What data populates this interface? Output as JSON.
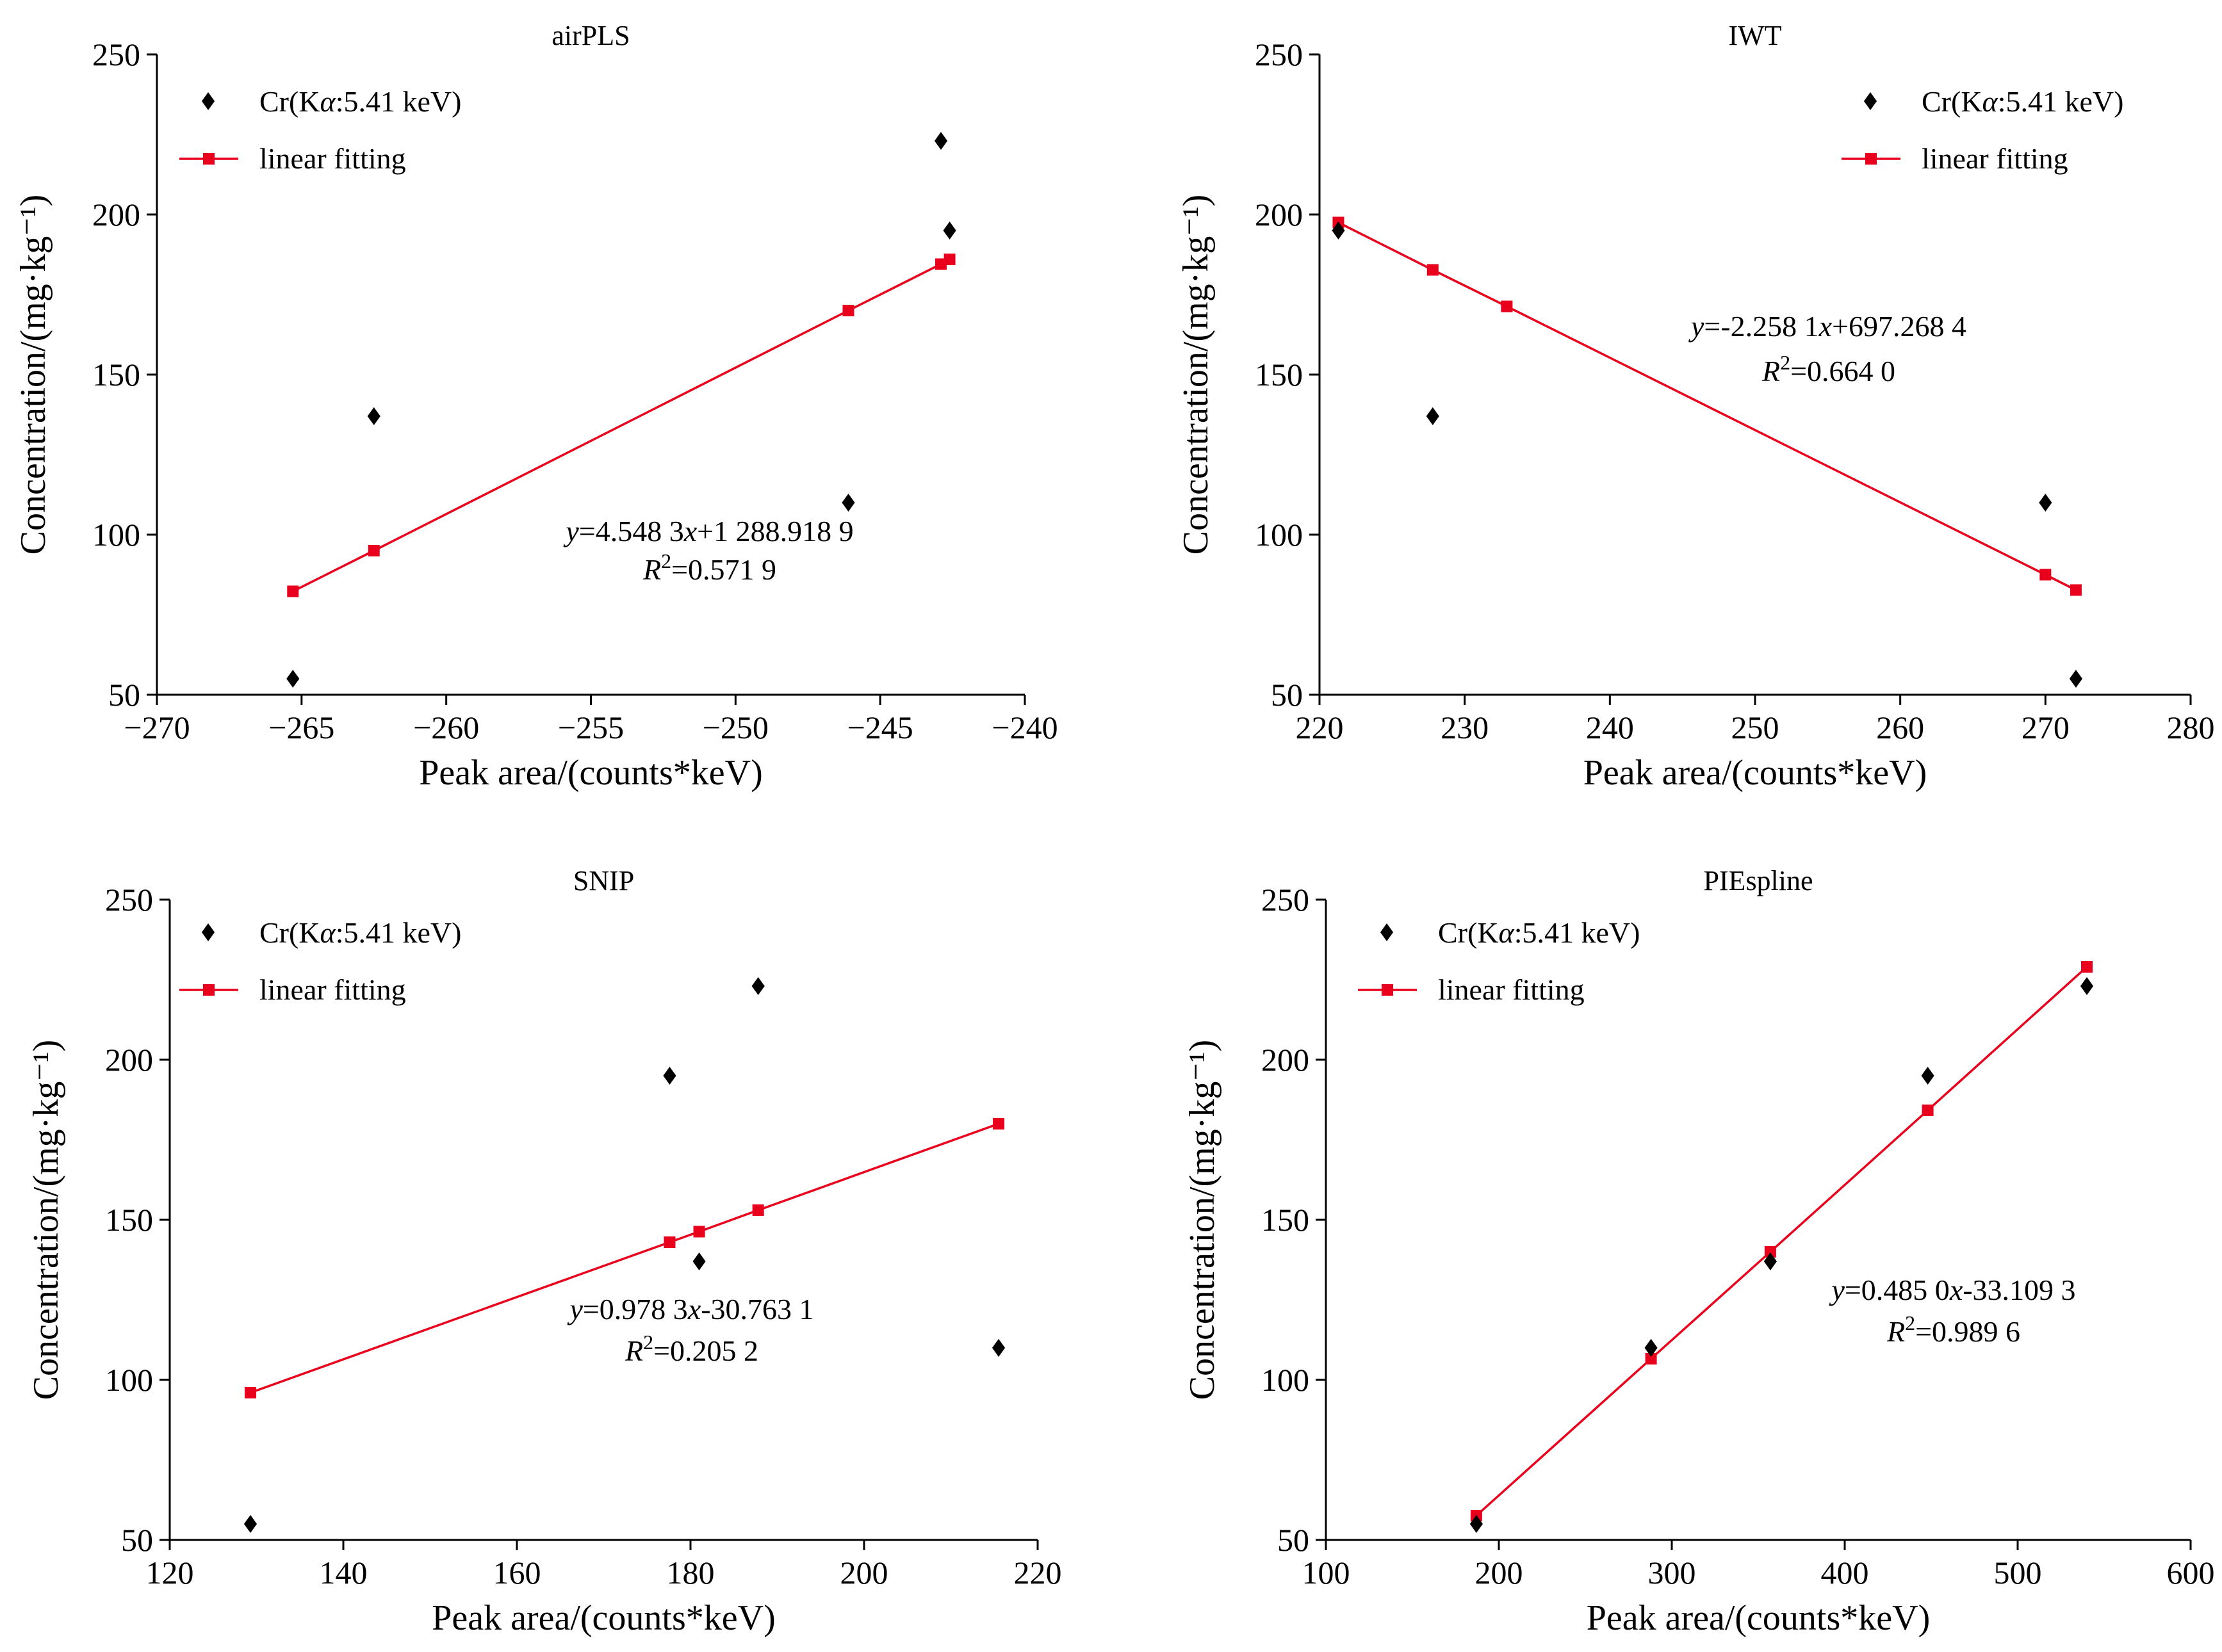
{
  "colors": {
    "scatter": "#000000",
    "fit": "#e8001c",
    "axis": "#000000"
  },
  "chart_data": [
    {
      "type": "scatter",
      "title": "airPLS",
      "xlabel": "Peak area/(counts*keV)",
      "ylabel": "Concentration/(mg·kg⁻¹)",
      "xlim": [
        -270,
        -240
      ],
      "ylim": [
        50,
        250
      ],
      "xticks": [
        -270,
        -265,
        -260,
        -255,
        -250,
        -245,
        -240
      ],
      "xtick_labels": [
        "−270",
        "−265",
        "−260",
        "−255",
        "−250",
        "−245",
        "−240"
      ],
      "yticks": [
        50,
        100,
        150,
        200,
        250
      ],
      "ytick_labels": [
        "50",
        "100",
        "150",
        "200",
        "250"
      ],
      "legend_position": "top-left",
      "series": [
        {
          "name": "Cr(Kα:5.41 keV)",
          "kind": "scatter",
          "marker": "diamond",
          "x": [
            -265.3,
            -262.5,
            -246.1,
            -242.9,
            -242.6
          ],
          "y": [
            55,
            137,
            110,
            223,
            195
          ]
        },
        {
          "name": "linear fitting",
          "kind": "line",
          "marker": "square",
          "x": [
            -265.3,
            -262.5,
            -246.1,
            -242.9,
            -242.6
          ],
          "y": [
            82.3,
            95.0,
            170.0,
            184.5,
            186.0
          ]
        }
      ],
      "annotations": {
        "equation": "y=4.548 3x+1 288.918 9",
        "r2": "R²=0.571 9"
      }
    },
    {
      "type": "scatter",
      "title": "IWT",
      "xlabel": "Peak area/(counts*keV)",
      "ylabel": "Concentration/(mg·kg⁻¹)",
      "xlim": [
        220,
        280
      ],
      "ylim": [
        50,
        250
      ],
      "xticks": [
        220,
        230,
        240,
        250,
        260,
        270,
        280
      ],
      "xtick_labels": [
        "220",
        "230",
        "240",
        "250",
        "260",
        "270",
        "280"
      ],
      "yticks": [
        50,
        100,
        150,
        200,
        250
      ],
      "ytick_labels": [
        "50",
        "100",
        "150",
        "200",
        "250"
      ],
      "legend_position": "top-right",
      "series": [
        {
          "name": "Cr(Kα:5.41 keV)",
          "kind": "scatter",
          "marker": "diamond",
          "x": [
            221.3,
            227.8,
            270.0,
            272.1
          ],
          "y": [
            195,
            137,
            110,
            55
          ]
        },
        {
          "name": "linear fitting",
          "kind": "line",
          "marker": "square",
          "x": [
            221.3,
            227.8,
            232.9,
            270.0,
            272.1
          ],
          "y": [
            197.5,
            182.7,
            171.3,
            87.5,
            82.7
          ]
        }
      ],
      "annotations": {
        "equation": "y=-2.258 1x+697.268 4",
        "r2": "R²=0.664 0"
      }
    },
    {
      "type": "scatter",
      "title": "SNIP",
      "xlabel": "Peak area/(counts*keV)",
      "ylabel": "Concentration/(mg·kg⁻¹)",
      "xlim": [
        120,
        220
      ],
      "ylim": [
        50,
        250
      ],
      "xticks": [
        120,
        140,
        160,
        180,
        200,
        220
      ],
      "xtick_labels": [
        "120",
        "140",
        "160",
        "180",
        "200",
        "220"
      ],
      "yticks": [
        50,
        100,
        150,
        200,
        250
      ],
      "ytick_labels": [
        "50",
        "100",
        "150",
        "200",
        "250"
      ],
      "legend_position": "top-left",
      "series": [
        {
          "name": "Cr(Kα:5.41 keV)",
          "kind": "scatter",
          "marker": "diamond",
          "x": [
            129.3,
            177.6,
            181.0,
            187.8,
            215.5
          ],
          "y": [
            55,
            195,
            137,
            223,
            110
          ]
        },
        {
          "name": "linear fitting",
          "kind": "line",
          "marker": "square",
          "x": [
            129.3,
            177.6,
            181.0,
            187.8,
            215.5
          ],
          "y": [
            96.0,
            143.0,
            146.3,
            153.0,
            180.0
          ]
        }
      ],
      "annotations": {
        "equation": "y=0.978 3x-30.763 1",
        "r2": "R²=0.205 2"
      }
    },
    {
      "type": "scatter",
      "title": "PIEspline",
      "xlabel": "Peak area/(counts*keV)",
      "ylabel": "Concentration/(mg·kg⁻¹)",
      "xlim": [
        100,
        600
      ],
      "ylim": [
        50,
        250
      ],
      "xticks": [
        100,
        200,
        300,
        400,
        500,
        600
      ],
      "xtick_labels": [
        "100",
        "200",
        "300",
        "400",
        "500",
        "600"
      ],
      "yticks": [
        50,
        100,
        150,
        200,
        250
      ],
      "ytick_labels": [
        "50",
        "100",
        "150",
        "200",
        "250"
      ],
      "legend_position": "top-left",
      "series": [
        {
          "name": "Cr(Kα:5.41 keV)",
          "kind": "scatter",
          "marker": "diamond",
          "x": [
            187,
            288,
            357,
            448,
            540
          ],
          "y": [
            55,
            110,
            137,
            195,
            223
          ]
        },
        {
          "name": "linear fitting",
          "kind": "line",
          "marker": "square",
          "x": [
            187,
            288,
            357,
            448,
            540
          ],
          "y": [
            57.6,
            106.6,
            140.0,
            184.2,
            229.0
          ]
        }
      ],
      "annotations": {
        "equation": "y=0.485 0x-33.109 3",
        "r2": "R²=0.989 6"
      }
    }
  ]
}
